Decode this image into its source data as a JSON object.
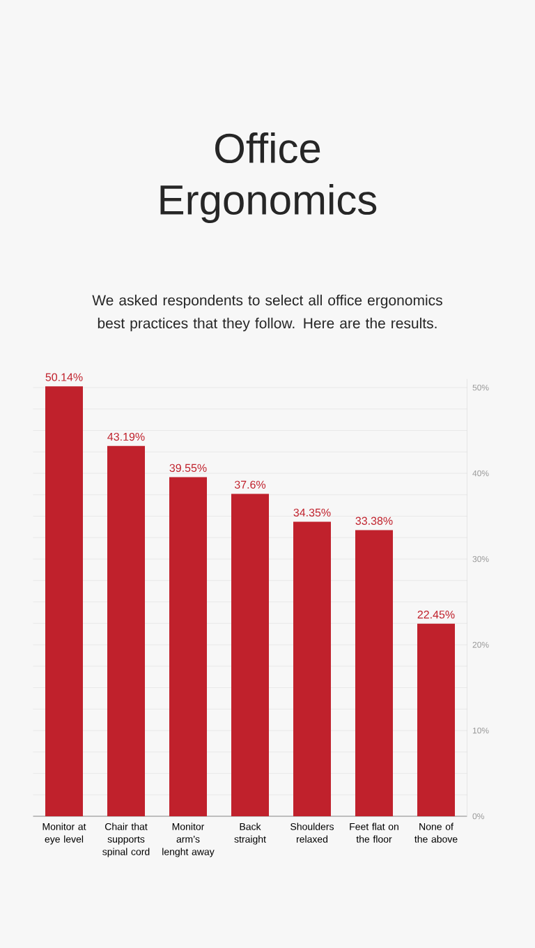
{
  "chart_data": {
    "type": "bar",
    "title": "Office Ergonomics",
    "subtitle": "We asked respondents to select all office ergonomics best practices that they follow. Here are the results.",
    "categories": [
      "Monitor at eye level",
      "Chair that supports spinal cord",
      "Monitor arm’s lenght away",
      "Back straight",
      "Shoulders relaxed",
      "Feet flat on the floor",
      "None of the above"
    ],
    "values": [
      50.14,
      43.19,
      39.55,
      37.6,
      34.35,
      33.38,
      22.45
    ],
    "value_labels": [
      "50.14%",
      "43.19%",
      "39.55%",
      "37.6%",
      "34.35%",
      "33.38%",
      "22.45%"
    ],
    "color": "#c0212c",
    "ylim": [
      0,
      51
    ],
    "yticks": [
      {
        "value": 0,
        "label": "0%"
      },
      {
        "value": 2.5,
        "label": null
      },
      {
        "value": 5,
        "label": null
      },
      {
        "value": 7.5,
        "label": null
      },
      {
        "value": 10,
        "label": "10%"
      },
      {
        "value": 12.5,
        "label": null
      },
      {
        "value": 15,
        "label": null
      },
      {
        "value": 17.5,
        "label": null
      },
      {
        "value": 20,
        "label": "20%"
      },
      {
        "value": 22.5,
        "label": null
      },
      {
        "value": 25,
        "label": null
      },
      {
        "value": 27.5,
        "label": null
      },
      {
        "value": 30,
        "label": "30%"
      },
      {
        "value": 32.5,
        "label": null
      },
      {
        "value": 35,
        "label": null
      },
      {
        "value": 37.5,
        "label": null
      },
      {
        "value": 40,
        "label": "40%"
      },
      {
        "value": 42.5,
        "label": null
      },
      {
        "value": 45,
        "label": null
      },
      {
        "value": 47.5,
        "label": null
      },
      {
        "value": 50,
        "label": "50%"
      }
    ],
    "grid": "y"
  }
}
